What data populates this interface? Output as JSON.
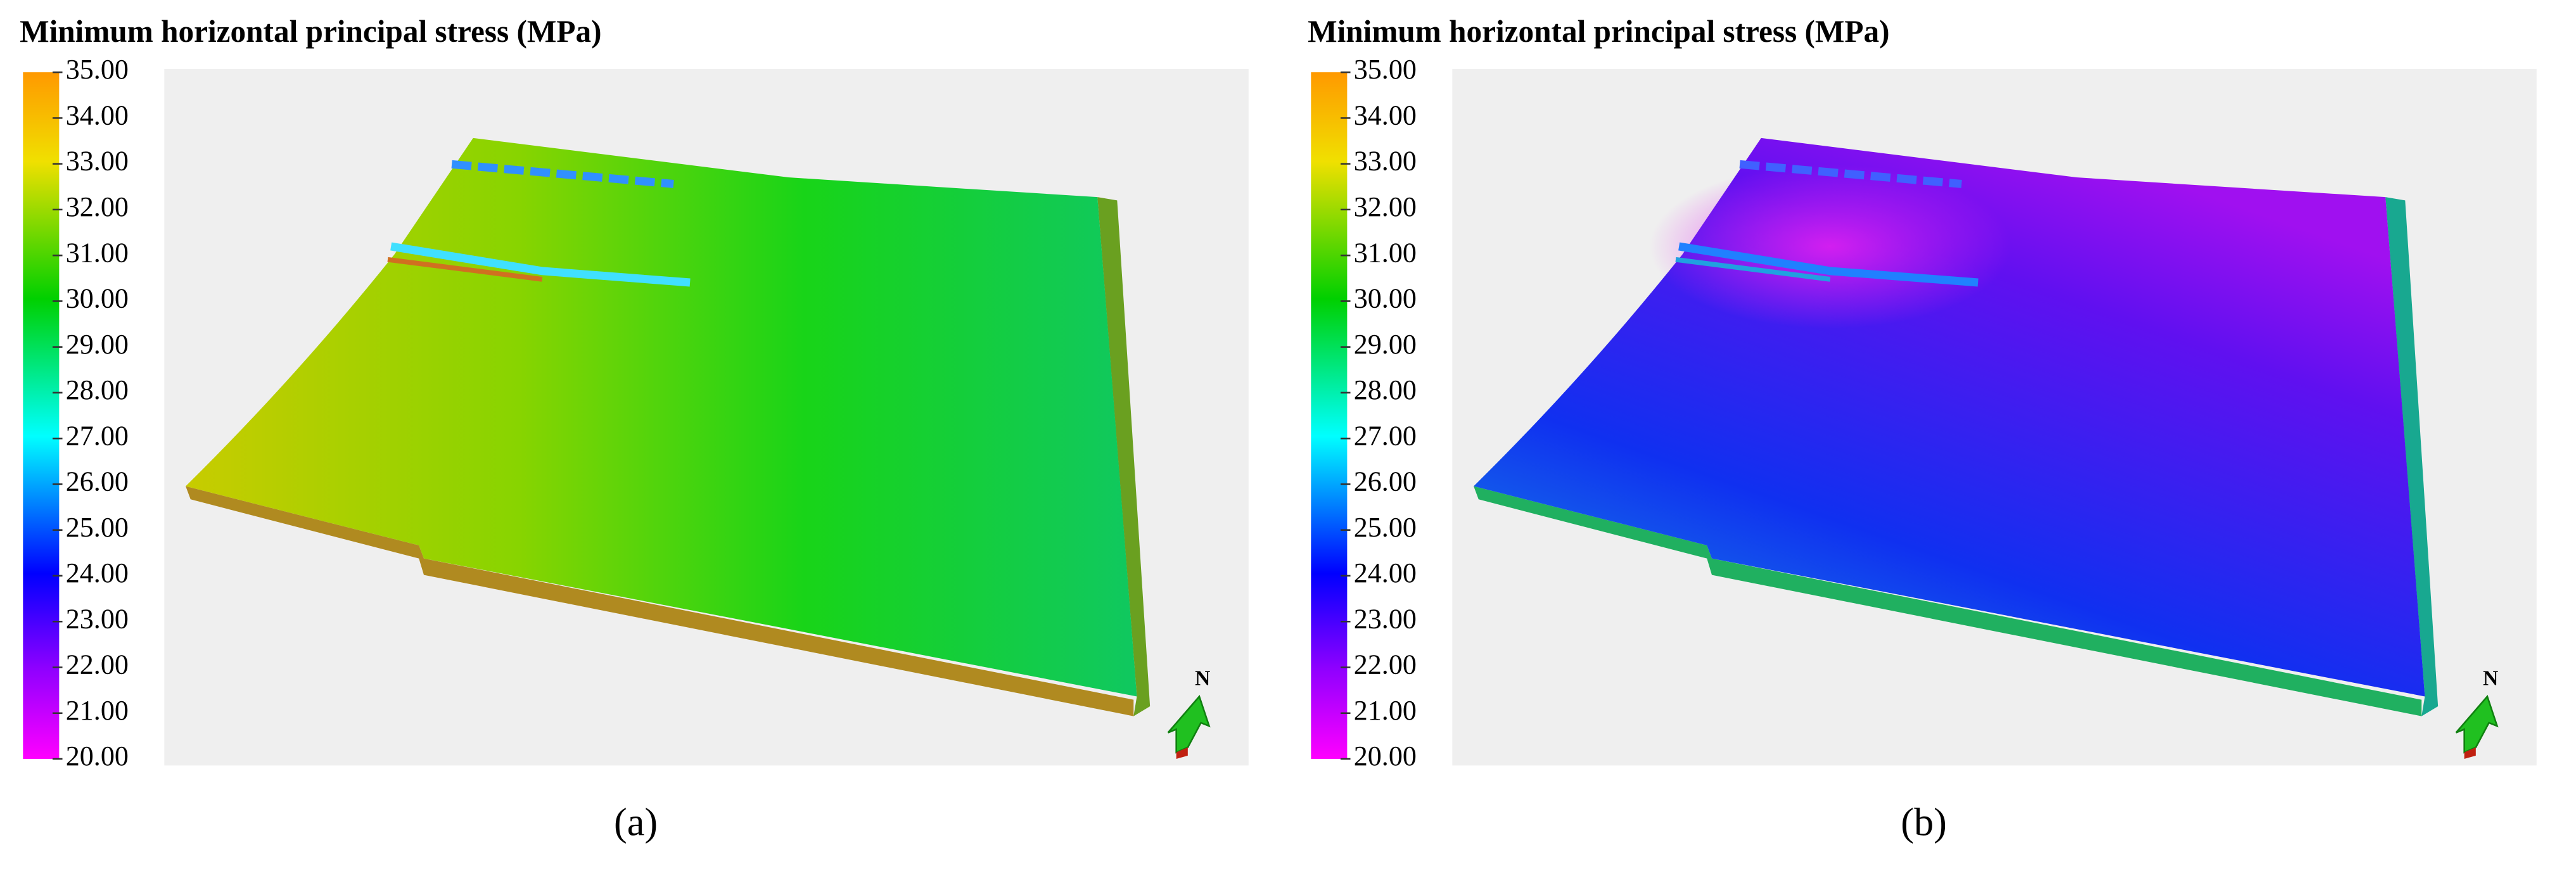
{
  "panels": [
    {
      "title": "Minimum horizontal principal stress (MPa)",
      "colorbar": {
        "range": [
          20,
          35
        ],
        "ticks": [
          {
            "value": 35,
            "label": "35.00"
          },
          {
            "value": 34,
            "label": "34.00"
          },
          {
            "value": 33,
            "label": "33.00"
          },
          {
            "value": 32,
            "label": "32.00"
          },
          {
            "value": 31,
            "label": "31.00"
          },
          {
            "value": 30,
            "label": "30.00"
          },
          {
            "value": 29,
            "label": "29.00"
          },
          {
            "value": 28,
            "label": "28.00"
          },
          {
            "value": 27,
            "label": "27.00"
          },
          {
            "value": 26,
            "label": "26.00"
          },
          {
            "value": 25,
            "label": "25.00"
          },
          {
            "value": 24,
            "label": "24.00"
          },
          {
            "value": 23,
            "label": "23.00"
          },
          {
            "value": 22,
            "label": "22.00"
          },
          {
            "value": 21,
            "label": "21.00"
          },
          {
            "value": 20,
            "label": "20.00"
          }
        ]
      },
      "north": "N",
      "caption": "(a)"
    },
    {
      "title": "Minimum horizontal principal stress (MPa)",
      "colorbar": {
        "range": [
          20,
          35
        ],
        "ticks": [
          {
            "value": 35,
            "label": "35.00"
          },
          {
            "value": 34,
            "label": "34.00"
          },
          {
            "value": 33,
            "label": "33.00"
          },
          {
            "value": 32,
            "label": "32.00"
          },
          {
            "value": 31,
            "label": "31.00"
          },
          {
            "value": 30,
            "label": "30.00"
          },
          {
            "value": 29,
            "label": "29.00"
          },
          {
            "value": 28,
            "label": "28.00"
          },
          {
            "value": 27,
            "label": "27.00"
          },
          {
            "value": 26,
            "label": "26.00"
          },
          {
            "value": 25,
            "label": "25.00"
          },
          {
            "value": 24,
            "label": "24.00"
          },
          {
            "value": 23,
            "label": "23.00"
          },
          {
            "value": 22,
            "label": "22.00"
          },
          {
            "value": 21,
            "label": "21.00"
          },
          {
            "value": 20,
            "label": "20.00"
          }
        ]
      },
      "north": "N",
      "caption": "(b)"
    }
  ]
}
